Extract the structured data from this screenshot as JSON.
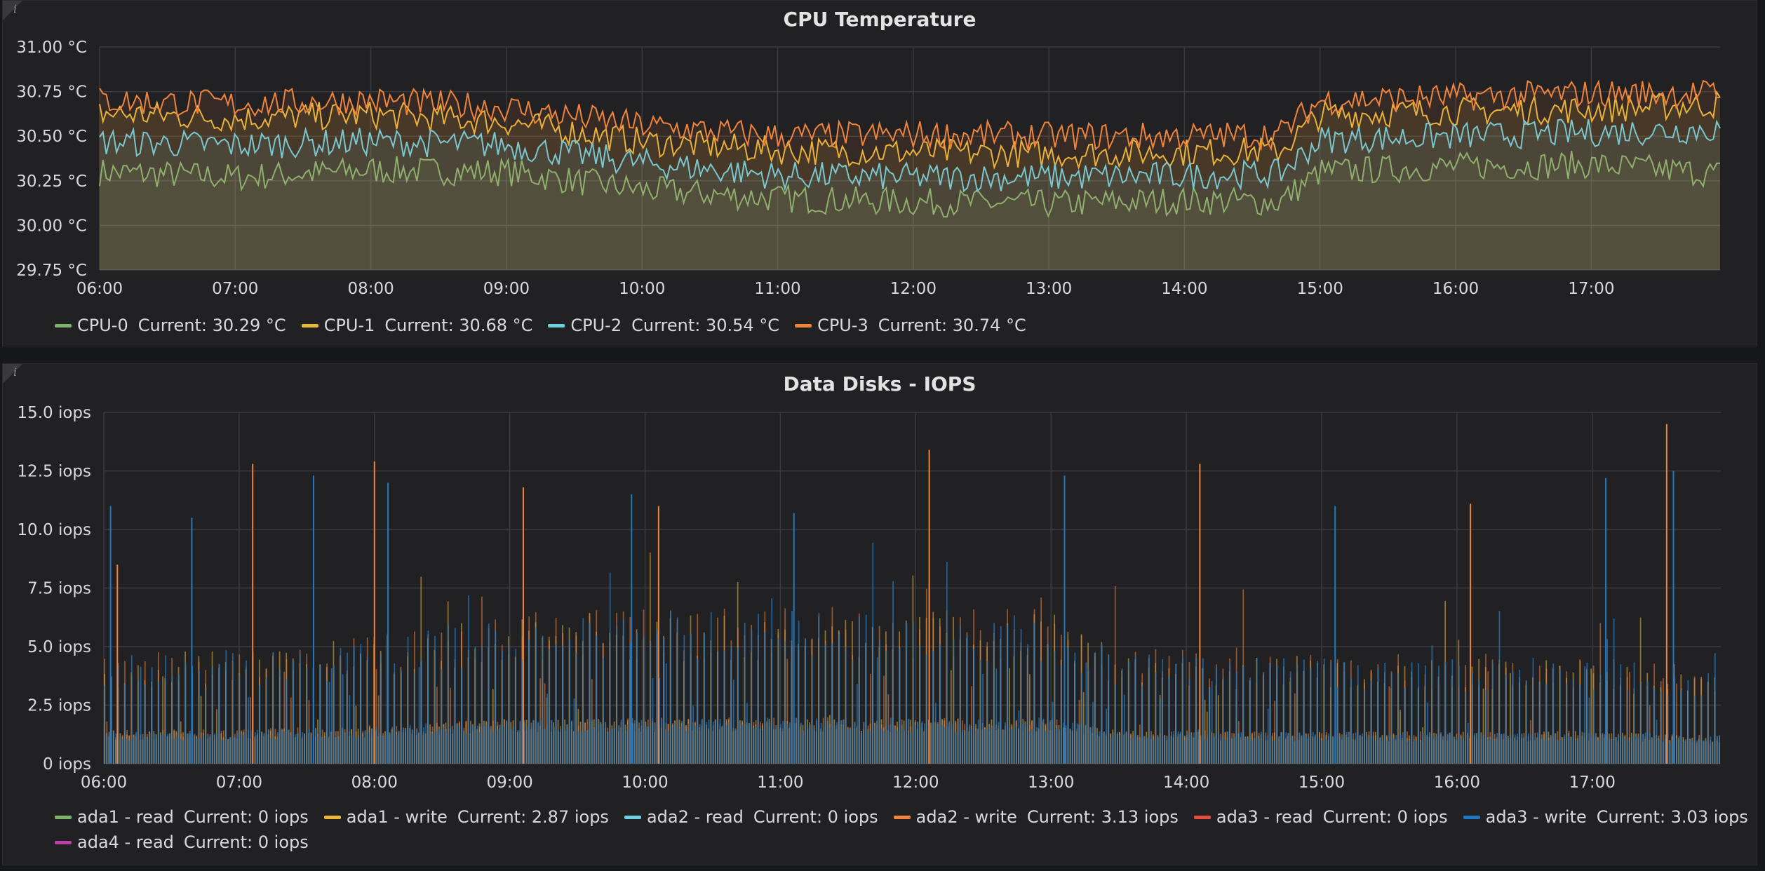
{
  "panels": [
    {
      "title": "CPU Temperature",
      "legend": [
        {
          "name": "CPU-0",
          "current": "Current: 30.29 °C",
          "color": "#7eb26d"
        },
        {
          "name": "CPU-1",
          "current": "Current: 30.68 °C",
          "color": "#eab839"
        },
        {
          "name": "CPU-2",
          "current": "Current: 30.54 °C",
          "color": "#6ed0e0"
        },
        {
          "name": "CPU-3",
          "current": "Current: 30.74 °C",
          "color": "#ef843c"
        }
      ]
    },
    {
      "title": "Data Disks - IOPS",
      "legend": [
        {
          "name": "ada1 - read",
          "current": "Current: 0 iops",
          "color": "#7eb26d"
        },
        {
          "name": "ada1 - write",
          "current": "Current: 2.87 iops",
          "color": "#eab839"
        },
        {
          "name": "ada2 - read",
          "current": "Current: 0 iops",
          "color": "#6ed0e0"
        },
        {
          "name": "ada2 - write",
          "current": "Current: 3.13 iops",
          "color": "#ef843c"
        },
        {
          "name": "ada3 - read",
          "current": "Current: 0 iops",
          "color": "#e24d42"
        },
        {
          "name": "ada3 - write",
          "current": "Current: 3.03 iops",
          "color": "#1f78c1"
        },
        {
          "name": "ada4 - read",
          "current": "Current: 0 iops",
          "color": "#ba43a9"
        }
      ]
    }
  ],
  "chart_data": [
    {
      "type": "area",
      "title": "CPU Temperature",
      "ylim": [
        29.75,
        31.0
      ],
      "y_ticks": [
        "29.75 °C",
        "30.00 °C",
        "30.25 °C",
        "30.50 °C",
        "30.75 °C",
        "31.00 °C"
      ],
      "x_ticks": [
        "06:00",
        "07:00",
        "08:00",
        "09:00",
        "10:00",
        "11:00",
        "12:00",
        "13:00",
        "14:00",
        "15:00",
        "16:00",
        "17:00"
      ],
      "x_range_hours": [
        6.0,
        17.95
      ],
      "grid": true,
      "legend_position": "bottom-left",
      "series": [
        {
          "name": "CPU-0",
          "color": "#7eb26d",
          "x": [
            6,
            7,
            8,
            9,
            10,
            11,
            12,
            13,
            14,
            14.7,
            15,
            16,
            17,
            17.95
          ],
          "values": [
            30.3,
            30.27,
            30.31,
            30.3,
            30.2,
            30.15,
            30.13,
            30.12,
            30.14,
            30.13,
            30.3,
            30.33,
            30.34,
            30.29
          ]
        },
        {
          "name": "CPU-1",
          "color": "#eab839",
          "x": [
            6,
            7,
            8,
            9,
            10,
            11,
            12,
            13,
            14,
            14.7,
            15,
            16,
            17,
            17.95
          ],
          "values": [
            30.63,
            30.6,
            30.62,
            30.58,
            30.47,
            30.42,
            30.41,
            30.4,
            30.41,
            30.42,
            30.62,
            30.64,
            30.65,
            30.68
          ]
        },
        {
          "name": "CPU-2",
          "color": "#6ed0e0",
          "x": [
            6,
            7,
            8,
            9,
            10,
            11,
            12,
            13,
            14,
            14.7,
            15,
            16,
            17,
            17.95
          ],
          "values": [
            30.47,
            30.45,
            30.47,
            30.45,
            30.35,
            30.28,
            30.27,
            30.27,
            30.28,
            30.29,
            30.48,
            30.5,
            30.52,
            30.54
          ]
        },
        {
          "name": "CPU-3",
          "color": "#ef843c",
          "x": [
            6,
            7,
            8,
            9,
            10,
            11,
            12,
            13,
            14,
            14.7,
            15,
            16,
            17,
            17.95
          ],
          "values": [
            30.7,
            30.68,
            30.7,
            30.66,
            30.56,
            30.5,
            30.51,
            30.5,
            30.5,
            30.51,
            30.7,
            30.72,
            30.74,
            30.74
          ]
        }
      ]
    },
    {
      "type": "bar",
      "title": "Data Disks - IOPS",
      "ylim": [
        0,
        15
      ],
      "y_ticks": [
        "0 iops",
        "2.5 iops",
        "5.0 iops",
        "7.5 iops",
        "10.0 iops",
        "12.5 iops",
        "15.0 iops"
      ],
      "x_ticks": [
        "06:00",
        "07:00",
        "08:00",
        "09:00",
        "10:00",
        "11:00",
        "12:00",
        "13:00",
        "14:00",
        "15:00",
        "16:00",
        "17:00"
      ],
      "x_range_hours": [
        6.0,
        17.95
      ],
      "grid": true,
      "legend_position": "bottom-left",
      "series": [
        {
          "name": "ada1 - write",
          "color": "#eab839",
          "x": [
            6,
            7,
            8,
            9,
            10,
            11,
            12,
            13,
            13.5,
            14,
            15,
            16,
            17,
            17.95
          ],
          "values": [
            3.5,
            3.6,
            4.0,
            4.8,
            4.8,
            4.9,
            4.8,
            4.8,
            3.6,
            3.5,
            3.4,
            3.4,
            3.5,
            2.87
          ]
        },
        {
          "name": "ada2 - write",
          "color": "#ef843c",
          "x": [
            6,
            7,
            8,
            9,
            10,
            11,
            12,
            13,
            13.5,
            14,
            15,
            16,
            17,
            17.95
          ],
          "values": [
            3.6,
            3.7,
            4.1,
            4.9,
            4.9,
            5.0,
            4.9,
            4.9,
            3.7,
            3.6,
            3.5,
            3.5,
            3.6,
            3.13
          ]
        },
        {
          "name": "ada3 - write",
          "color": "#1f78c1",
          "x": [
            6,
            7,
            8,
            9,
            10,
            11,
            12,
            13,
            13.5,
            14,
            15,
            16,
            17,
            17.95
          ],
          "values": [
            3.5,
            3.6,
            4.0,
            4.8,
            4.8,
            4.9,
            4.8,
            4.8,
            3.6,
            3.5,
            3.4,
            3.4,
            3.5,
            3.03
          ]
        },
        {
          "name": "ada1 - read",
          "color": "#7eb26d",
          "x": [
            6,
            17.95
          ],
          "values": [
            0,
            0
          ]
        },
        {
          "name": "ada2 - read",
          "color": "#6ed0e0",
          "x": [
            6,
            17.95
          ],
          "values": [
            0,
            0
          ]
        },
        {
          "name": "ada3 - read",
          "color": "#e24d42",
          "x": [
            6,
            17.95
          ],
          "values": [
            0,
            0
          ]
        },
        {
          "name": "ada4 - read",
          "color": "#ba43a9",
          "x": [
            6,
            17.95
          ],
          "values": [
            0,
            0
          ]
        }
      ],
      "peaks": {
        "x": [
          6.05,
          6.1,
          6.65,
          7.1,
          7.55,
          8.0,
          8.1,
          9.1,
          9.9,
          10.1,
          11.1,
          12.1,
          13.1,
          14.1,
          15.1,
          16.1,
          17.1,
          17.55,
          17.6
        ],
        "values": [
          11.0,
          8.5,
          10.5,
          12.8,
          12.3,
          12.9,
          12.0,
          11.8,
          11.5,
          11.0,
          10.7,
          13.4,
          12.3,
          12.8,
          11.0,
          11.1,
          12.2,
          14.5,
          12.5
        ]
      }
    }
  ]
}
